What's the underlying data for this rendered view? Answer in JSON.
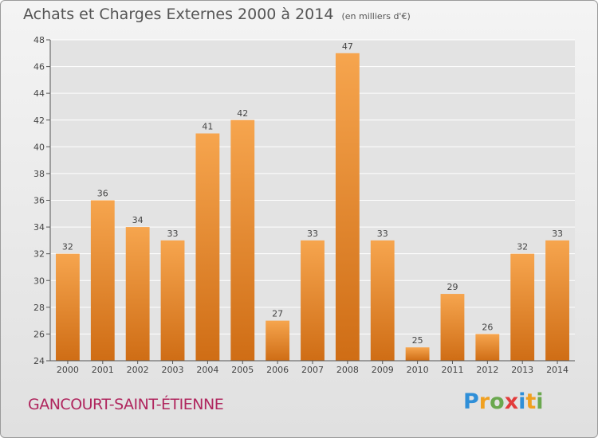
{
  "header": {
    "title": "Achats et Charges Externes 2000 à 2014",
    "subtitle": "(en milliers d'€)"
  },
  "footer": {
    "commune": "GANCOURT-SAINT-ÉTIENNE",
    "logo_text": "Proxiti"
  },
  "colors": {
    "bar_top": "#f6a54e",
    "bar_bottom": "#cf6d15",
    "commune": "#b0265e",
    "logo": [
      "#2f8fd8",
      "#f0a020",
      "#6aa84f",
      "#e23b3b",
      "#2f8fd8",
      "#f0a020",
      "#6aa84f"
    ]
  },
  "chart_data": {
    "type": "bar",
    "categories": [
      "2000",
      "2001",
      "2002",
      "2003",
      "2004",
      "2005",
      "2006",
      "2007",
      "2008",
      "2009",
      "2010",
      "2011",
      "2012",
      "2013",
      "2014"
    ],
    "values": [
      32,
      36,
      34,
      33,
      41,
      42,
      27,
      33,
      47,
      33,
      25,
      29,
      26,
      32,
      33
    ],
    "ylim": [
      24,
      48
    ],
    "yticks": [
      24,
      26,
      28,
      30,
      32,
      34,
      36,
      38,
      40,
      42,
      44,
      46,
      48
    ],
    "grid": true,
    "xlabel": "",
    "ylabel": ""
  }
}
